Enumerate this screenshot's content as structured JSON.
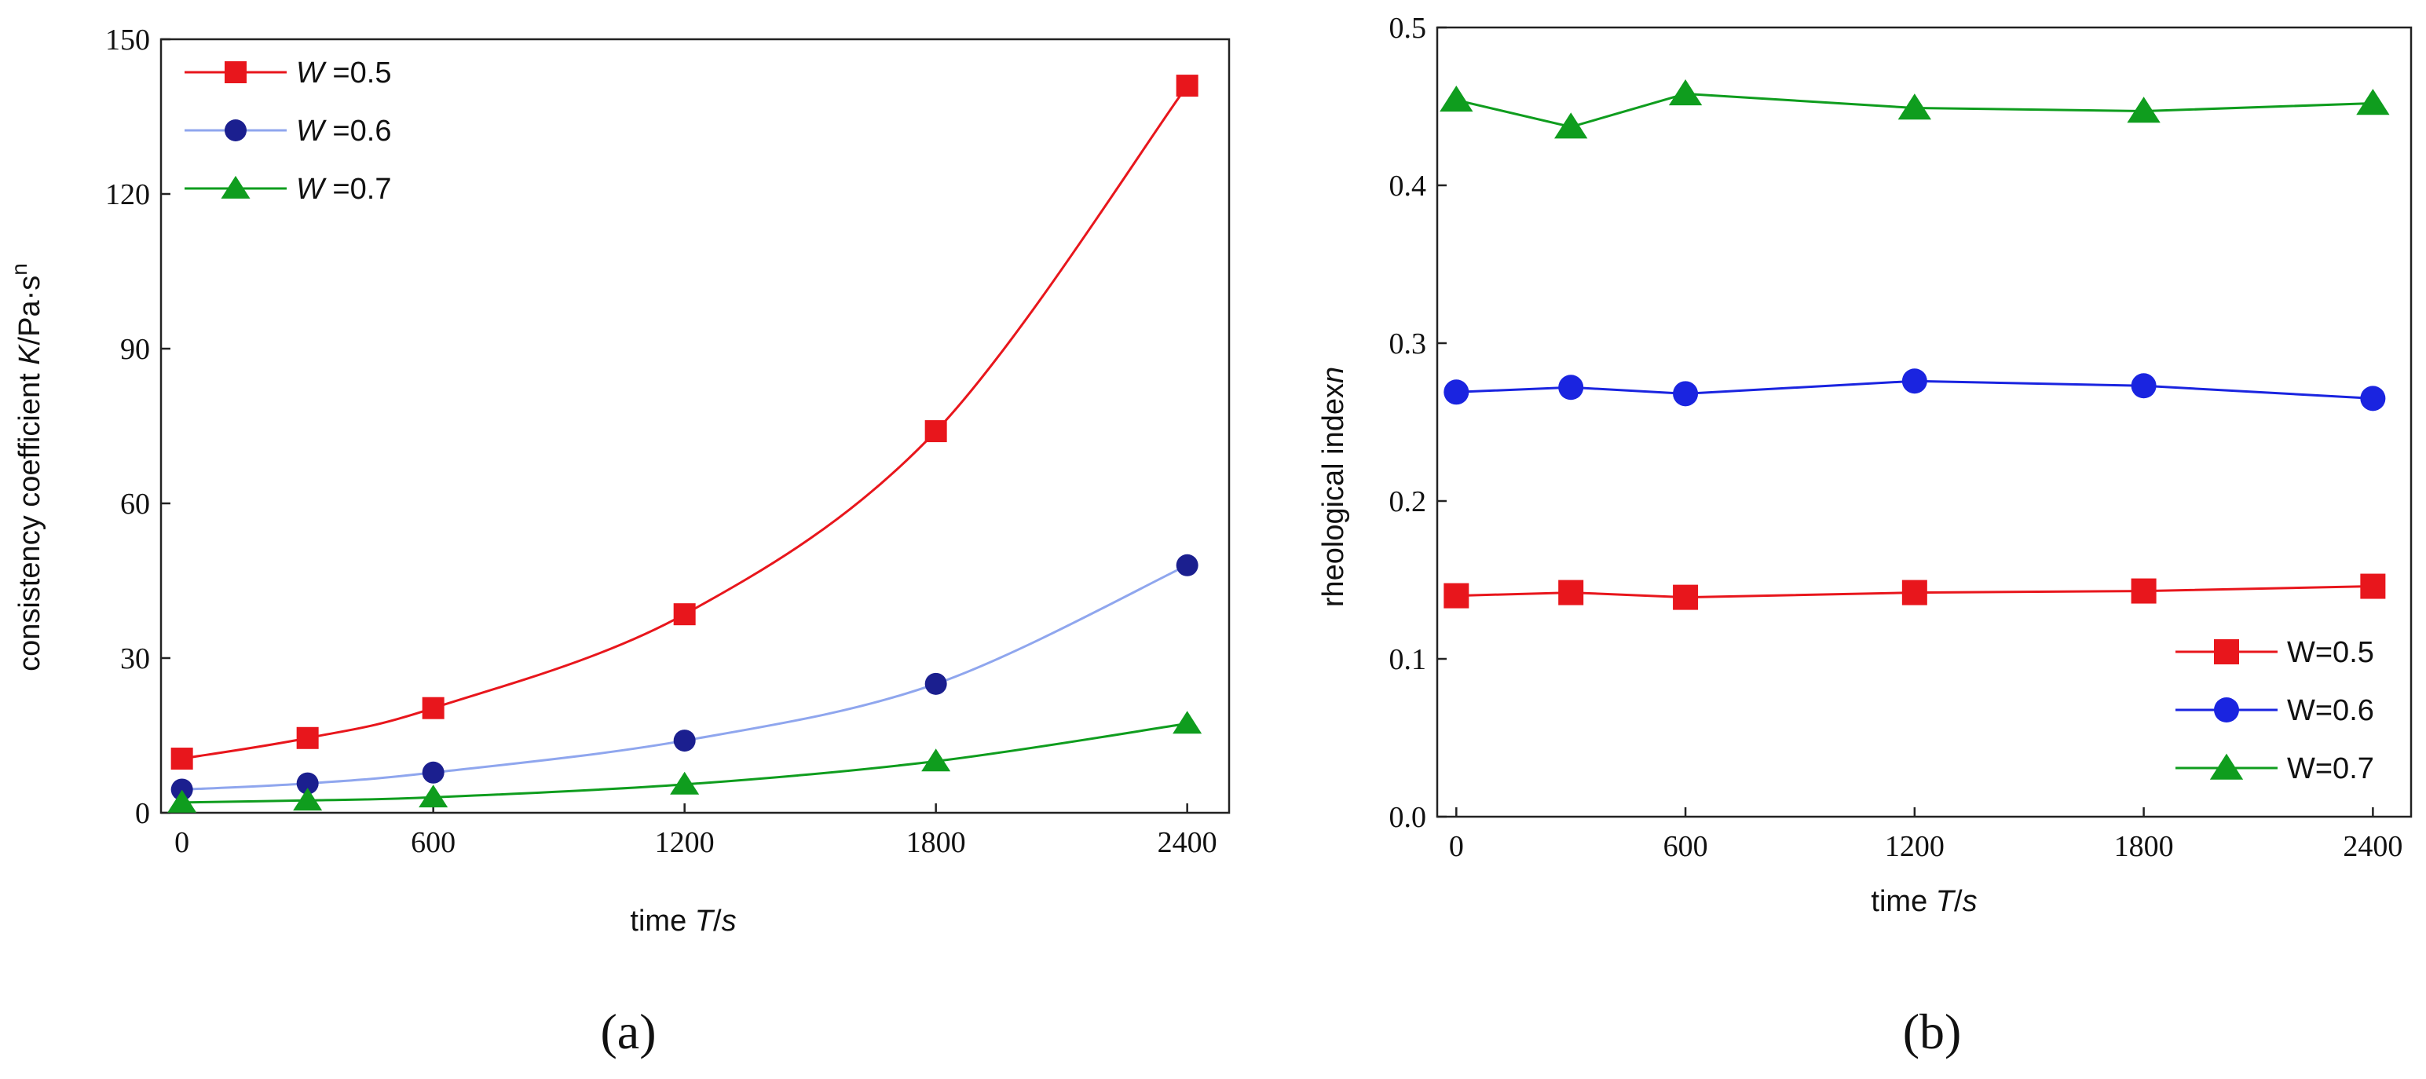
{
  "chart_data": [
    {
      "type": "line",
      "panel_label": "(a)",
      "ylabel_prefix": "consistency coefficient ",
      "ylabel_var": "K",
      "ylabel_unit": "/Pa·s",
      "ylabel_sup": "n",
      "xlabel_prefix": "time ",
      "xlabel_var": "T",
      "xlabel_unit": "/",
      "xlabel_unit_var": "s",
      "x": [
        0,
        300,
        600,
        1200,
        1800,
        2400
      ],
      "xticks": [
        "0",
        "600",
        "1200",
        "1800",
        "2400"
      ],
      "xtick_values": [
        0,
        600,
        1200,
        1800,
        2400
      ],
      "yticks": [
        "0",
        "30",
        "60",
        "90",
        "120",
        "150"
      ],
      "ytick_values": [
        0,
        30,
        60,
        90,
        120,
        150
      ],
      "xlim": [
        -50,
        2500
      ],
      "ylim": [
        0,
        150
      ],
      "legend_position": "top-left",
      "series": [
        {
          "name": "W =0.5",
          "legend_var": "W",
          "legend_rest": " =0.5",
          "color": "#e8161c",
          "marker": "square",
          "values": [
            10.5,
            14.5,
            20.3,
            38.5,
            74.0,
            141.0
          ]
        },
        {
          "name": "W =0.6",
          "legend_var": "W",
          "legend_rest": " =0.6",
          "color": "#1b1f8f",
          "line_color": "#8fa6ee",
          "marker": "circle",
          "values": [
            4.5,
            5.7,
            7.8,
            14.0,
            25.0,
            48.0
          ]
        },
        {
          "name": "W =0.7",
          "legend_var": "W",
          "legend_rest": " =0.7",
          "color": "#0f9d1e",
          "marker": "triangle",
          "values": [
            2.0,
            2.4,
            3.0,
            5.5,
            10.0,
            17.3
          ]
        }
      ]
    },
    {
      "type": "line",
      "panel_label": "(b)",
      "ylabel_prefix": "rheological index",
      "ylabel_var": "n",
      "xlabel_prefix": "time ",
      "xlabel_var": "T",
      "xlabel_unit": "/",
      "xlabel_unit_var": "s",
      "x": [
        0,
        300,
        600,
        1200,
        1800,
        2400
      ],
      "xticks": [
        "0",
        "600",
        "1200",
        "1800",
        "2400"
      ],
      "xtick_values": [
        0,
        600,
        1200,
        1800,
        2400
      ],
      "yticks": [
        "0.0",
        "0.1",
        "0.2",
        "0.3",
        "0.4",
        "0.5"
      ],
      "ytick_values": [
        0,
        0.1,
        0.2,
        0.3,
        0.4,
        0.5
      ],
      "xlim": [
        -50,
        2500
      ],
      "ylim": [
        0,
        0.5
      ],
      "legend_position": "bottom-right",
      "series": [
        {
          "name": "W=0.5",
          "color": "#e8161c",
          "marker": "square",
          "values": [
            0.14,
            0.142,
            0.139,
            0.142,
            0.143,
            0.146
          ]
        },
        {
          "name": "W=0.6",
          "color": "#1a24e0",
          "marker": "circle",
          "values": [
            0.269,
            0.272,
            0.268,
            0.276,
            0.273,
            0.265
          ]
        },
        {
          "name": "W=0.7",
          "color": "#0f9d1e",
          "marker": "triangle",
          "values": [
            0.454,
            0.437,
            0.458,
            0.449,
            0.447,
            0.452
          ]
        }
      ]
    }
  ]
}
